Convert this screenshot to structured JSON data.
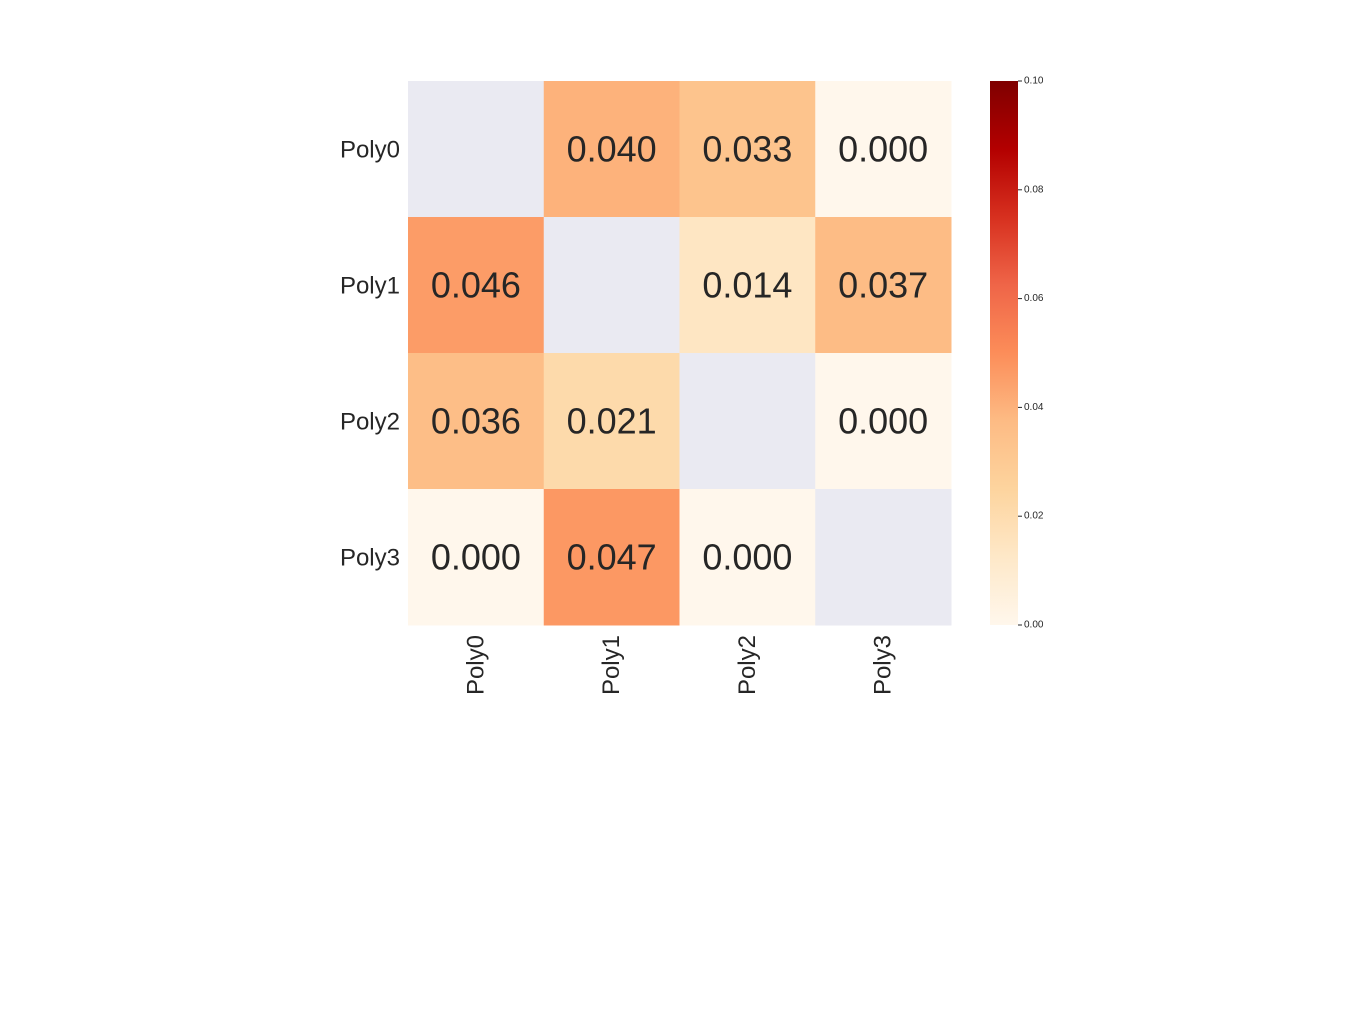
{
  "chart_data": {
    "type": "heatmap",
    "rows": [
      "Poly0",
      "Poly1",
      "Poly2",
      "Poly3"
    ],
    "columns": [
      "Poly0",
      "Poly1",
      "Poly2",
      "Poly3"
    ],
    "values": [
      [
        null,
        0.04,
        0.033,
        0.0
      ],
      [
        0.046,
        null,
        0.014,
        0.037
      ],
      [
        0.036,
        0.021,
        null,
        0.0
      ],
      [
        0.0,
        0.047,
        0.0,
        null
      ]
    ],
    "labels": [
      [
        "",
        "0.040",
        "0.033",
        "0.000"
      ],
      [
        "0.046",
        "",
        "0.014",
        "0.037"
      ],
      [
        "0.036",
        "0.021",
        "",
        "0.000"
      ],
      [
        "0.000",
        "0.047",
        "0.000",
        ""
      ]
    ],
    "masked_diagonal": true,
    "colormap": "OrRd",
    "vmin": 0.0,
    "vmax": 0.1,
    "colorbar": {
      "ticks": [
        0.0,
        0.02,
        0.04,
        0.06,
        0.08,
        0.1
      ],
      "tick_labels": [
        "0.00",
        "0.02",
        "0.04",
        "0.06",
        "0.08",
        "0.10"
      ]
    },
    "colors": {
      "masked": "#eaeaf2",
      "text": "#262626",
      "stops": [
        "#fff7ec",
        "#fee8c8",
        "#fdd49e",
        "#fdbb84",
        "#fc8d59",
        "#ef6548",
        "#d7301f",
        "#b30000",
        "#7f0000"
      ]
    },
    "title": "",
    "xlabel": "",
    "ylabel": ""
  }
}
